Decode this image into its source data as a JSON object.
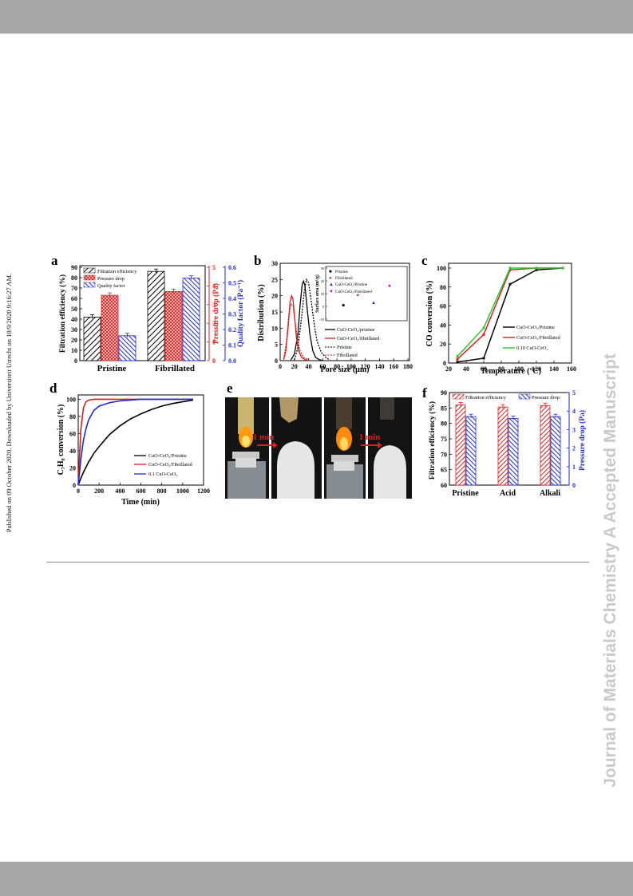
{
  "page": {
    "watermark": "Journal of Materials Chemistry A Accepted Manuscript",
    "published_line": "Published on 09 October 2020. Downloaded by Universiteit Utrecht on 10/9/2020 9:16:27 AM."
  },
  "colors": {
    "band": "#a6a6a6",
    "red": "#d42020",
    "blue": "#1f2bc8",
    "green": "#2ec42e",
    "black": "#000000"
  },
  "panels": {
    "a": {
      "letter": "a",
      "left_axis_label": "Filtration efficiency (%)",
      "mid_axis_label": "Pressure drop (Pa)",
      "right_axis_label": "Quality factor (Pa⁻¹)",
      "left_ticks": [
        "0",
        "10",
        "20",
        "30",
        "40",
        "50",
        "60",
        "70",
        "80",
        "90"
      ],
      "mid_ticks": [
        "0",
        "1",
        "2",
        "3",
        "4",
        "5"
      ],
      "right_ticks": [
        "0.0",
        "0.1",
        "0.2",
        "0.3",
        "0.4",
        "0.5",
        "0.6"
      ],
      "legend": [
        "Filtration efficiency",
        "Pressure drop",
        "Quality factor"
      ],
      "categories": [
        "Pristine",
        "Fibrillated"
      ]
    },
    "b": {
      "letter": "b",
      "y_label": "Distribution (%)",
      "x_label": "Pore size (μm)",
      "y_ticks": [
        "0",
        "5",
        "10",
        "15",
        "20",
        "25",
        "30"
      ],
      "x_ticks": [
        "0",
        "20",
        "40",
        "60",
        "80",
        "100",
        "120",
        "140",
        "160",
        "180"
      ],
      "legend": [
        "CuO-CeO₂/pristine",
        "CuO-CeO₂/fibrillated",
        "Pristine",
        "Fibrillated"
      ],
      "inset": {
        "y_label": "Surface area (m²/g)",
        "y_ticks": [
          "-10",
          "0",
          "10",
          "20",
          "30"
        ],
        "legend": [
          "Pristine",
          "Fibrillated",
          "CuO-CeO₂/Pristine",
          "CuO-CeO₂/Fibrillated"
        ]
      }
    },
    "c": {
      "letter": "c",
      "y_label": "CO conversion (%)",
      "x_label": "Temperature (°C)",
      "y_ticks": [
        "0",
        "20",
        "40",
        "60",
        "80",
        "100"
      ],
      "x_ticks": [
        "20",
        "40",
        "60",
        "80",
        "100",
        "120",
        "140",
        "160"
      ],
      "legend": [
        "CuO-CeO₂/Pristine",
        "CuO-CeO₂/Fibrillated",
        "0.10 CuO-CeO₂"
      ]
    },
    "d": {
      "letter": "d",
      "y_label": "C₇H₈ conversion (%)",
      "x_label": "Time (min)",
      "y_ticks": [
        "0",
        "20",
        "40",
        "60",
        "80",
        "100"
      ],
      "x_ticks": [
        "0",
        "200",
        "400",
        "600",
        "800",
        "1000",
        "1200"
      ],
      "legend": [
        "CuO-CeO₂/Pristine",
        "CuO-CeO₂/Fibrillated",
        "0.1 CuO-CeO₂"
      ]
    },
    "e": {
      "letter": "e",
      "label_left": "1 min",
      "label_right": "1 min"
    },
    "f": {
      "letter": "f",
      "left_axis_label": "Filtration efficiency (%)",
      "right_axis_label": "Pressure drop (Pa)",
      "left_ticks": [
        "60",
        "65",
        "70",
        "75",
        "80",
        "85",
        "90"
      ],
      "right_ticks": [
        "0",
        "1",
        "2",
        "3",
        "4",
        "5"
      ],
      "legend": [
        "Filtration efficiency",
        "Pressure drop"
      ],
      "categories": [
        "Pristine",
        "Acid",
        "Alkali"
      ]
    }
  },
  "chart_data": [
    {
      "panel": "a",
      "type": "bar",
      "categories": [
        "Pristine",
        "Fibrillated"
      ],
      "series": [
        {
          "name": "Filtration efficiency",
          "axis": "left",
          "unit": "%",
          "values": [
            42,
            86
          ]
        },
        {
          "name": "Pressure drop",
          "axis": "mid",
          "unit": "Pa",
          "values": [
            3.5,
            3.7
          ]
        },
        {
          "name": "Quality factor",
          "axis": "right",
          "unit": "Pa-1",
          "values": [
            0.16,
            0.53
          ]
        }
      ],
      "ylim_left": [
        0,
        90
      ],
      "ylim_mid": [
        0,
        5
      ],
      "ylim_right": [
        0,
        0.6
      ]
    },
    {
      "panel": "b",
      "type": "line",
      "xlim": [
        0,
        180
      ],
      "ylim": [
        0,
        30
      ],
      "series": [
        {
          "name": "CuO-CeO₂/pristine",
          "style": "solid-black",
          "x": [
            15,
            20,
            25,
            28,
            31,
            33,
            35,
            38,
            42,
            46,
            50,
            55,
            60
          ],
          "y": [
            0.2,
            2,
            8,
            17,
            23.5,
            24.5,
            23,
            16,
            8,
            3,
            1,
            0.3,
            0
          ]
        },
        {
          "name": "CuO-CeO₂/fibrillated",
          "style": "solid-red",
          "x": [
            5,
            8,
            11,
            14,
            16,
            18,
            20,
            23,
            26,
            30,
            35,
            40
          ],
          "y": [
            0.3,
            3,
            10,
            18,
            20,
            19,
            14,
            7,
            3,
            1,
            0.3,
            0
          ]
        },
        {
          "name": "Pristine",
          "style": "dash-black",
          "x": [
            20,
            25,
            30,
            34,
            37,
            40,
            44,
            48,
            52,
            58,
            65,
            70
          ],
          "y": [
            0.3,
            4,
            13,
            21.5,
            25,
            24,
            18,
            11,
            6,
            2.5,
            0.8,
            0.2
          ]
        },
        {
          "name": "Fibrillated",
          "style": "dash-red",
          "x": [
            5,
            9,
            12,
            15,
            18,
            21,
            24,
            28,
            33,
            40
          ],
          "y": [
            0.5,
            6,
            14,
            17.5,
            17,
            12,
            7,
            3,
            1,
            0.2
          ]
        }
      ],
      "inset": {
        "type": "scatter",
        "ylim": [
          -10,
          30
        ],
        "points": [
          {
            "name": "Pristine",
            "value": 1
          },
          {
            "name": "Fibrillated",
            "value": 9
          },
          {
            "name": "CuO-CeO₂/Pristine",
            "value": 3
          },
          {
            "name": "CuO-CeO₂/Fibrillated",
            "value": 16
          }
        ]
      }
    },
    {
      "panel": "c",
      "type": "line",
      "xlim": [
        20,
        160
      ],
      "ylim": [
        0,
        105
      ],
      "x": [
        30,
        60,
        90,
        120,
        150
      ],
      "series": [
        {
          "name": "CuO-CeO₂/Pristine",
          "values": [
            1,
            5,
            83,
            98,
            100
          ]
        },
        {
          "name": "CuO-CeO₂/Fibrillated",
          "values": [
            4,
            30,
            98,
            100,
            100
          ]
        },
        {
          "name": "0.10 CuO-CeO₂",
          "values": [
            7,
            37,
            100,
            100,
            100
          ]
        }
      ]
    },
    {
      "panel": "d",
      "type": "line",
      "xlim": [
        0,
        1200
      ],
      "ylim": [
        0,
        105
      ],
      "x": [
        0,
        25,
        50,
        75,
        100,
        150,
        200,
        300,
        400,
        500,
        600,
        700,
        800,
        900,
        1000,
        1100
      ],
      "series": [
        {
          "name": "CuO-CeO₂/Pristine",
          "values": [
            0,
            8,
            15,
            21,
            27,
            37,
            45,
            59,
            69,
            77,
            83,
            88,
            92,
            95,
            97,
            99
          ]
        },
        {
          "name": "CuO-CeO₂/Fibrillated",
          "values": [
            0,
            65,
            90,
            97,
            99,
            100,
            100,
            100,
            100,
            100,
            100,
            100,
            100,
            100,
            100,
            100
          ]
        },
        {
          "name": "0.1 CuO-CeO₂",
          "values": [
            0,
            30,
            52,
            66,
            76,
            87,
            92,
            96,
            98,
            99,
            100,
            100,
            100,
            100,
            100,
            100
          ]
        }
      ]
    },
    {
      "panel": "f",
      "type": "bar",
      "categories": [
        "Pristine",
        "Acid",
        "Alkali"
      ],
      "series": [
        {
          "name": "Filtration efficiency",
          "axis": "left",
          "unit": "%",
          "values": [
            86,
            85.3,
            85.8
          ]
        },
        {
          "name": "Pressure drop",
          "axis": "right",
          "unit": "Pa",
          "values": [
            3.7,
            3.6,
            3.7
          ]
        }
      ],
      "ylim_left": [
        60,
        90
      ],
      "ylim_right": [
        0,
        5
      ]
    }
  ]
}
